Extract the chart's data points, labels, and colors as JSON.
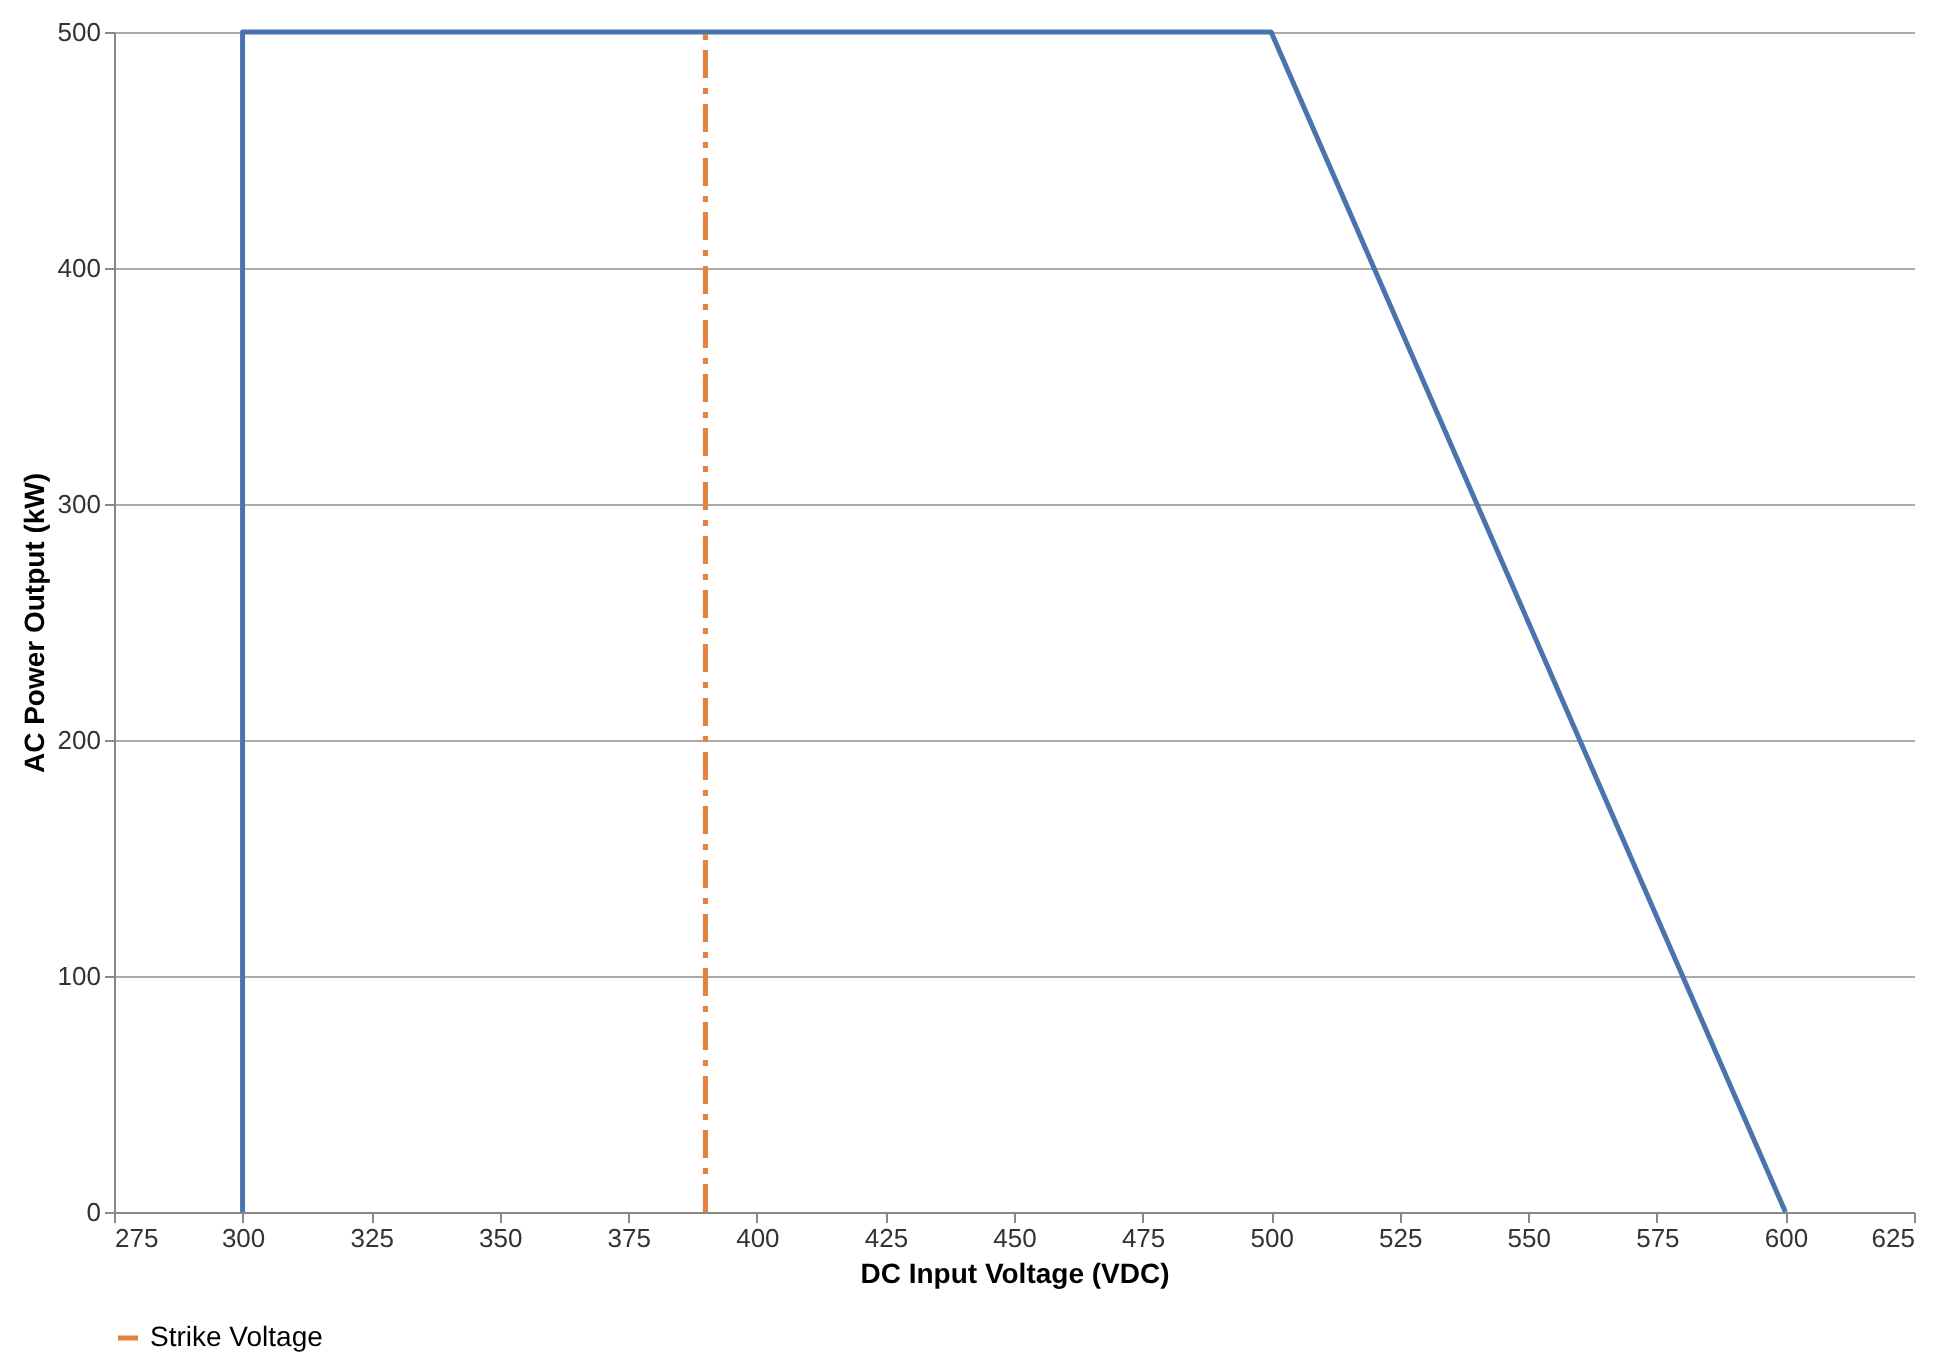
{
  "chart_data": {
    "type": "line",
    "xlabel": "DC Input Voltage (VDC)",
    "ylabel": "AC Power Output (kW)",
    "series": [
      {
        "color": "#4a74ac",
        "x": [
          300,
          300,
          500,
          600
        ],
        "values": [
          0,
          500,
          500,
          0
        ]
      },
      {
        "name": "Strike Voltage",
        "color": "#e2823c",
        "x": [
          390,
          390
        ],
        "values": [
          0,
          500
        ],
        "line_style": "dashed"
      }
    ],
    "xlim": [
      275,
      625
    ],
    "xticks": [
      275,
      300,
      325,
      350,
      375,
      400,
      425,
      450,
      475,
      500,
      525,
      550,
      575,
      600,
      625
    ],
    "ylim": [
      0,
      500
    ],
    "yticks": [
      0,
      100,
      200,
      300,
      400,
      500
    ],
    "grid": "y",
    "legend": "bottom",
    "marker": "none"
  }
}
